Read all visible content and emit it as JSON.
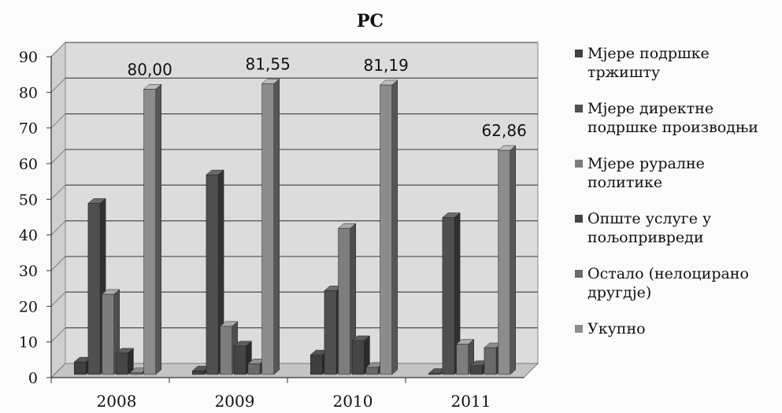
{
  "chart_data": {
    "type": "bar",
    "title": "РС",
    "categories": [
      "2008",
      "2009",
      "2010",
      "2011"
    ],
    "ylim": [
      0,
      90
    ],
    "yticks": [
      0,
      10,
      20,
      30,
      40,
      50,
      60,
      70,
      80,
      90
    ],
    "grid": true,
    "legend_position": "right",
    "series": [
      {
        "name": "Мјере подршке тржишту",
        "values": [
          3.5,
          1.0,
          5.5,
          0.3
        ],
        "color": "#3f3f3f"
      },
      {
        "name": "Мјере директне подршке производњи",
        "values": [
          48.0,
          56.0,
          23.5,
          44.0
        ],
        "color": "#4f4f4f"
      },
      {
        "name": "Мјере руралне политике",
        "values": [
          22.5,
          13.5,
          41.0,
          8.5
        ],
        "color": "#7d7d7d"
      },
      {
        "name": "Опште услуге у пољопривреди",
        "values": [
          6.0,
          8.0,
          9.5,
          2.5
        ],
        "color": "#454545"
      },
      {
        "name": "Остало (нелоцирано другдје)",
        "values": [
          0.5,
          3.0,
          2.0,
          7.5
        ],
        "color": "#6a6a6a"
      },
      {
        "name": "Укупно",
        "values": [
          80.0,
          81.55,
          81.19,
          62.86
        ],
        "color": "#8c8c8c"
      }
    ],
    "data_labels": [
      {
        "series": "Укупно",
        "category": "2008",
        "text": "80,00"
      },
      {
        "series": "Укупно",
        "category": "2009",
        "text": "81,55"
      },
      {
        "series": "Укупно",
        "category": "2010",
        "text": "81,19"
      },
      {
        "series": "Укупно",
        "category": "2011",
        "text": "62,86"
      }
    ]
  }
}
